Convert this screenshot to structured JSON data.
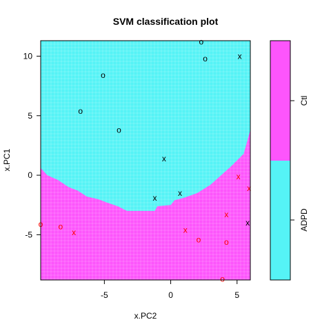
{
  "chart_data": {
    "type": "scatter",
    "title": "SVM classification plot",
    "xlabel": "x.PC2",
    "ylabel": "x.PC1",
    "xlim": [
      -9.8,
      6.0
    ],
    "ylim": [
      -8.8,
      11.3
    ],
    "xticks": [
      -5,
      0,
      5
    ],
    "yticks": [
      -5,
      0,
      5,
      10
    ],
    "colors": {
      "ADPD": "#55F3F6",
      "Ctl": "#FD55FC",
      "ADPD_points": "#000000",
      "Ctl_points": "#ff0000",
      "grid": "#ffffff"
    },
    "legend": {
      "placement": "right",
      "entries": [
        "ADPD",
        "Ctl"
      ]
    },
    "decision_boundary": {
      "x": [
        -9.8,
        -9.3,
        -8.5,
        -7.7,
        -7.0,
        -6.3,
        -5.5,
        -4.8,
        -4.0,
        -3.3,
        -2.4,
        -1.2,
        -1.0,
        0.0,
        0.3,
        1.0,
        2.0,
        3.0,
        3.8,
        4.6,
        5.5,
        6.0
      ],
      "y": [
        0.6,
        0.0,
        -0.4,
        -1.0,
        -1.3,
        -1.8,
        -2.0,
        -2.3,
        -2.6,
        -3.0,
        -3.0,
        -3.0,
        -2.6,
        -2.5,
        -2.1,
        -1.9,
        -1.5,
        -0.8,
        0.0,
        0.8,
        1.8,
        3.8
      ]
    },
    "points": [
      {
        "x": 2.3,
        "y": 11.2,
        "marker": "o",
        "class": "ADPD"
      },
      {
        "x": 2.6,
        "y": 9.8,
        "marker": "o",
        "class": "ADPD"
      },
      {
        "x": 5.2,
        "y": 10.0,
        "marker": "x",
        "class": "ADPD"
      },
      {
        "x": -5.1,
        "y": 8.4,
        "marker": "o",
        "class": "ADPD"
      },
      {
        "x": -6.8,
        "y": 5.4,
        "marker": "o",
        "class": "ADPD"
      },
      {
        "x": -3.9,
        "y": 3.8,
        "marker": "o",
        "class": "ADPD"
      },
      {
        "x": -0.5,
        "y": 1.4,
        "marker": "x",
        "class": "ADPD"
      },
      {
        "x": -1.2,
        "y": -1.9,
        "marker": "x",
        "class": "ADPD"
      },
      {
        "x": 0.7,
        "y": -1.5,
        "marker": "x",
        "class": "ADPD"
      },
      {
        "x": 5.8,
        "y": -4.0,
        "marker": "x",
        "class": "ADPD"
      },
      {
        "x": 5.1,
        "y": -0.1,
        "marker": "x",
        "class": "Ctl"
      },
      {
        "x": 5.9,
        "y": -1.1,
        "marker": "x",
        "class": "Ctl"
      },
      {
        "x": 4.2,
        "y": -3.3,
        "marker": "x",
        "class": "Ctl"
      },
      {
        "x": 1.1,
        "y": -4.6,
        "marker": "x",
        "class": "Ctl"
      },
      {
        "x": 2.1,
        "y": -5.4,
        "marker": "o",
        "class": "Ctl"
      },
      {
        "x": 4.2,
        "y": -5.6,
        "marker": "o",
        "class": "Ctl"
      },
      {
        "x": -9.8,
        "y": -4.1,
        "marker": "o",
        "class": "Ctl"
      },
      {
        "x": -8.3,
        "y": -4.3,
        "marker": "o",
        "class": "Ctl"
      },
      {
        "x": -7.3,
        "y": -4.8,
        "marker": "x",
        "class": "Ctl"
      },
      {
        "x": 3.9,
        "y": -8.7,
        "marker": "o",
        "class": "Ctl"
      }
    ]
  }
}
